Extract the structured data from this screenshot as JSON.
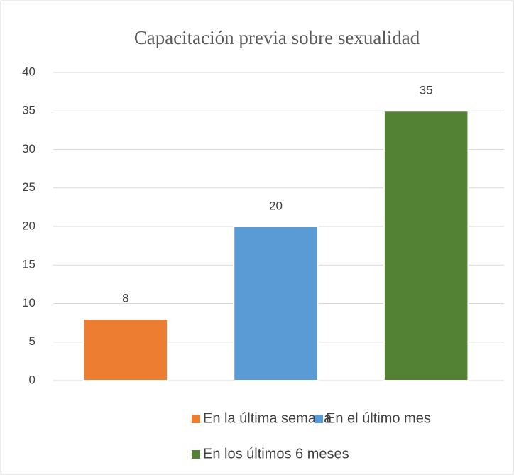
{
  "chart_data": {
    "type": "bar",
    "title": "Capacitación previa sobre sexualidad",
    "categories": [
      "En la última semana",
      "En el último mes",
      "En los últimos 6 meses"
    ],
    "values": [
      8,
      20,
      35
    ],
    "colors": [
      "#ed7d31",
      "#5b9bd5",
      "#548235"
    ],
    "ylim": [
      0,
      40
    ],
    "yticks": [
      0,
      5,
      10,
      15,
      20,
      25,
      30,
      35,
      40
    ],
    "grid": true,
    "legend": "bottom"
  }
}
